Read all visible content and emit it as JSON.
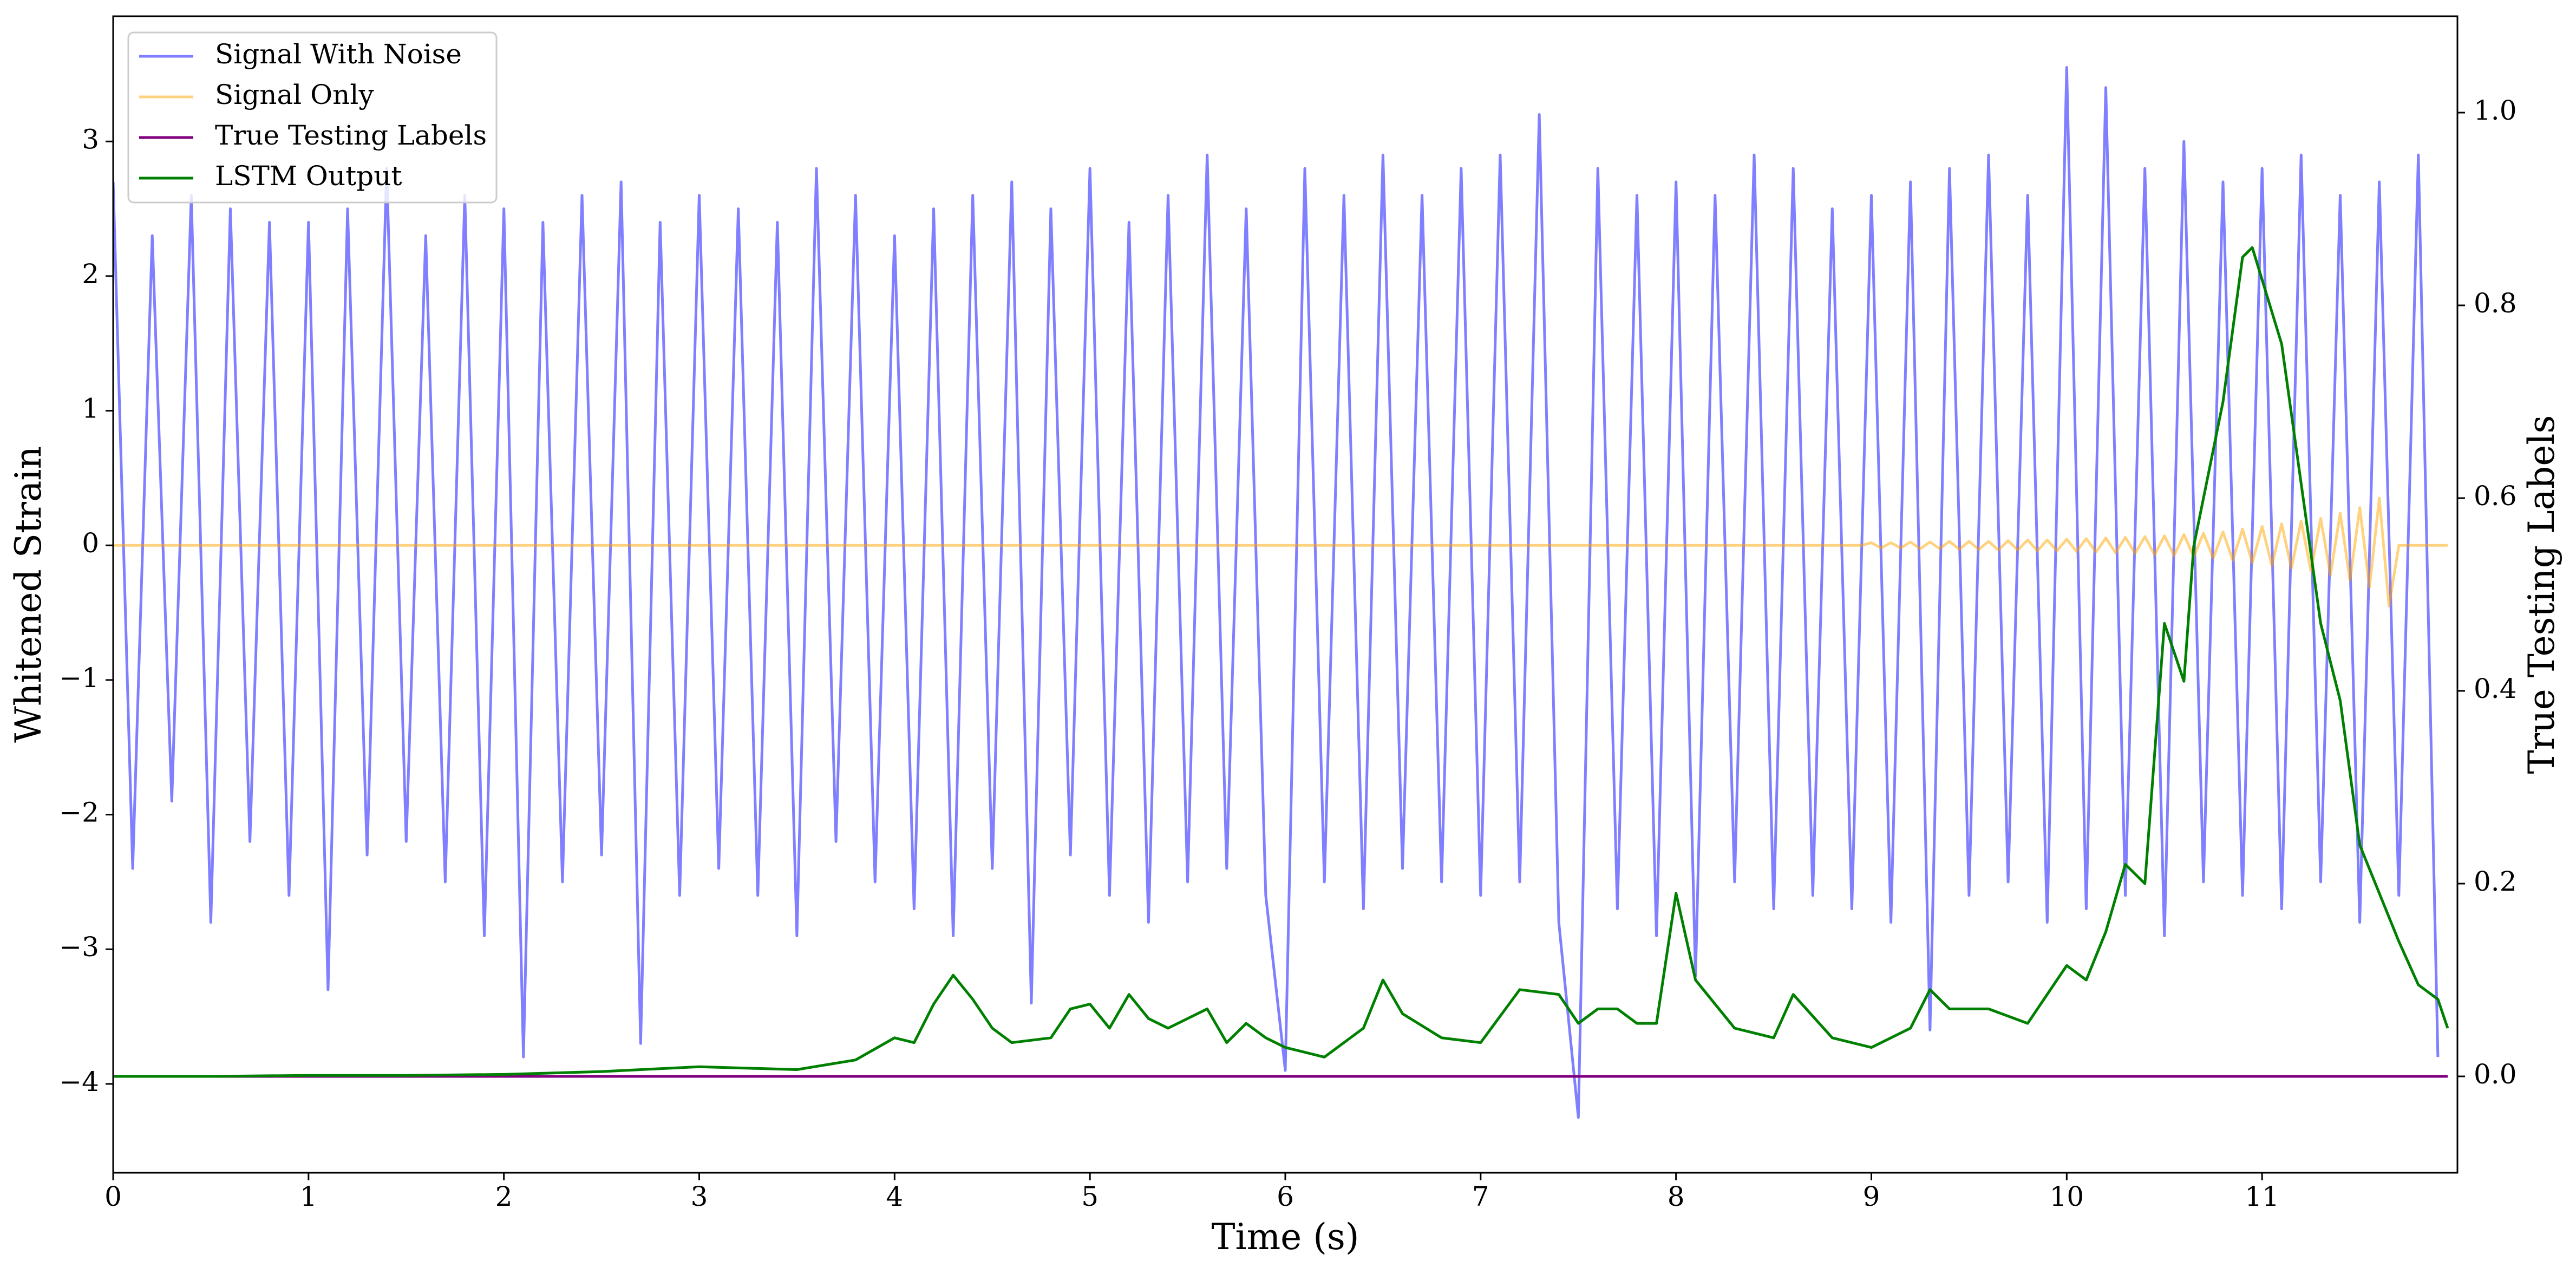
{
  "chart_data": {
    "type": "line",
    "xlabel": "Time (s)",
    "ylabel": "Whitened Strain",
    "y2label": "True Testing Labels",
    "xlim": [
      0,
      12
    ],
    "ylim": [
      -4.66,
      3.93
    ],
    "y2lim": [
      -0.1,
      1.1
    ],
    "xticks": [
      0,
      1,
      2,
      3,
      4,
      5,
      6,
      7,
      8,
      9,
      10,
      11
    ],
    "yticks": [
      {
        "value": -4,
        "label": "−4"
      },
      {
        "value": -3,
        "label": "−3"
      },
      {
        "value": -2,
        "label": "−2"
      },
      {
        "value": -1,
        "label": "−1"
      },
      0,
      1,
      2,
      3
    ],
    "y2ticks": [
      {
        "value": 0,
        "label": "0.0"
      },
      {
        "value": 0.2,
        "label": "0.2"
      },
      {
        "value": 0.4,
        "label": "0.4"
      },
      {
        "value": 0.6,
        "label": "0.6"
      },
      {
        "value": 0.8,
        "label": "0.8"
      },
      {
        "value": 1,
        "label": "1.0"
      }
    ],
    "legend": "upper left",
    "series": [
      {
        "name": "Signal With Noise",
        "color": "blue",
        "alpha": 0.5,
        "x": [
          0,
          0.1,
          0.2,
          0.3,
          0.4,
          0.5,
          0.6,
          0.7,
          0.8,
          0.9,
          1,
          1.1,
          1.2,
          1.3,
          1.4,
          1.5,
          1.6,
          1.7,
          1.8,
          1.9,
          2,
          2.1,
          2.2,
          2.3,
          2.4,
          2.5,
          2.6,
          2.7,
          2.8,
          2.9,
          3,
          3.1,
          3.2,
          3.3,
          3.4,
          3.5,
          3.6,
          3.7,
          3.8,
          3.9,
          4,
          4.1,
          4.2,
          4.3,
          4.4,
          4.5,
          4.6,
          4.7,
          4.8,
          4.9,
          5,
          5.1,
          5.2,
          5.3,
          5.4,
          5.5,
          5.6,
          5.7,
          5.8,
          5.9,
          6,
          6.1,
          6.2,
          6.3,
          6.4,
          6.5,
          6.6,
          6.7,
          6.8,
          6.9,
          7,
          7.1,
          7.2,
          7.3,
          7.4,
          7.5,
          7.6,
          7.7,
          7.8,
          7.9,
          8,
          8.1,
          8.2,
          8.3,
          8.4,
          8.5,
          8.6,
          8.7,
          8.8,
          8.9,
          9,
          9.1,
          9.2,
          9.3,
          9.4,
          9.5,
          9.6,
          9.7,
          9.8,
          9.9,
          10,
          10.1,
          10.2,
          10.3,
          10.4,
          10.5,
          10.6,
          10.7,
          10.8,
          10.9,
          11,
          11.1,
          11.2,
          11.3,
          11.4,
          11.5,
          11.6,
          11.7,
          11.8,
          11.9
        ],
        "values": [
          2.7,
          -2.4,
          2.3,
          -1.9,
          2.6,
          -2.8,
          2.5,
          -2.2,
          2.4,
          -2.6,
          2.4,
          -3.3,
          2.5,
          -2.3,
          2.8,
          -2.2,
          2.3,
          -2.5,
          2.6,
          -2.9,
          2.5,
          -3.8,
          2.4,
          -2.5,
          2.6,
          -2.3,
          2.7,
          -3.7,
          2.4,
          -2.6,
          2.6,
          -2.4,
          2.5,
          -2.6,
          2.4,
          -2.9,
          2.8,
          -2.2,
          2.6,
          -2.5,
          2.3,
          -2.7,
          2.5,
          -2.9,
          2.6,
          -2.4,
          2.7,
          -3.4,
          2.5,
          -2.3,
          2.8,
          -2.6,
          2.4,
          -2.8,
          2.6,
          -2.5,
          2.9,
          -2.4,
          2.5,
          -2.6,
          -3.9,
          2.8,
          -2.5,
          2.6,
          -2.7,
          2.9,
          -2.4,
          2.6,
          -2.5,
          2.8,
          -2.6,
          2.9,
          -2.5,
          3.2,
          -2.8,
          -4.25,
          2.8,
          -2.7,
          2.6,
          -2.9,
          2.7,
          -3.2,
          2.6,
          -2.5,
          2.9,
          -2.7,
          2.8,
          -2.6,
          2.5,
          -2.7,
          2.6,
          -2.8,
          2.7,
          -3.6,
          2.8,
          -2.6,
          2.9,
          -2.5,
          2.6,
          -2.8,
          3.55,
          -2.7,
          3.4,
          -2.6,
          2.8,
          -2.9,
          3.0,
          -2.5,
          2.7,
          -2.6,
          2.8,
          -2.7,
          2.9,
          -2.5,
          2.6,
          -2.8,
          2.7,
          -2.6,
          2.9,
          -3.8
        ]
      },
      {
        "name": "Signal Only",
        "color": "orange",
        "alpha": 0.5,
        "x": [
          0,
          8.95,
          9,
          9.05,
          9.1,
          9.15,
          9.2,
          9.25,
          9.3,
          9.35,
          9.4,
          9.45,
          9.5,
          9.55,
          9.6,
          9.65,
          9.7,
          9.75,
          9.8,
          9.85,
          9.9,
          9.95,
          10,
          10.05,
          10.1,
          10.15,
          10.2,
          10.25,
          10.3,
          10.35,
          10.4,
          10.45,
          10.5,
          10.55,
          10.6,
          10.65,
          10.7,
          10.75,
          10.8,
          10.85,
          10.9,
          10.95,
          11,
          11.05,
          11.1,
          11.15,
          11.2,
          11.25,
          11.3,
          11.35,
          11.4,
          11.45,
          11.5,
          11.55,
          11.6,
          11.65,
          11.7,
          11.95
        ],
        "values": [
          0,
          0,
          0.02,
          -0.02,
          0.02,
          -0.02,
          0.025,
          -0.025,
          0.025,
          -0.025,
          0.03,
          -0.03,
          0.03,
          -0.03,
          0.03,
          -0.035,
          0.035,
          -0.035,
          0.04,
          -0.04,
          0.04,
          -0.04,
          0.045,
          -0.045,
          0.05,
          -0.05,
          0.055,
          -0.055,
          0.06,
          -0.06,
          0.065,
          -0.07,
          0.07,
          -0.075,
          0.08,
          -0.085,
          0.09,
          -0.095,
          0.1,
          -0.11,
          0.12,
          -0.13,
          0.14,
          -0.15,
          0.16,
          -0.17,
          0.18,
          -0.19,
          0.2,
          -0.22,
          0.24,
          -0.26,
          0.28,
          -0.31,
          0.35,
          -0.45,
          0,
          0
        ]
      },
      {
        "name": "True Testing Labels",
        "color": "purple",
        "axis": "y2",
        "x": [
          0,
          11.95
        ],
        "values": [
          0,
          0
        ]
      },
      {
        "name": "LSTM Output",
        "color": "green",
        "axis": "y2",
        "x": [
          0,
          0.5,
          1,
          1.5,
          2,
          2.5,
          3,
          3.5,
          3.8,
          4.0,
          4.1,
          4.2,
          4.3,
          4.4,
          4.5,
          4.6,
          4.8,
          4.9,
          5.0,
          5.1,
          5.2,
          5.3,
          5.4,
          5.6,
          5.7,
          5.8,
          5.9,
          6.0,
          6.2,
          6.4,
          6.5,
          6.6,
          6.8,
          7.0,
          7.2,
          7.4,
          7.5,
          7.6,
          7.7,
          7.8,
          7.9,
          8.0,
          8.1,
          8.3,
          8.5,
          8.6,
          8.8,
          9.0,
          9.2,
          9.3,
          9.4,
          9.6,
          9.8,
          10.0,
          10.1,
          10.2,
          10.3,
          10.4,
          10.5,
          10.6,
          10.65,
          10.8,
          10.9,
          10.95,
          11.1,
          11.3,
          11.4,
          11.5,
          11.7,
          11.8,
          11.9,
          11.95
        ],
        "values": [
          0,
          0,
          0.001,
          0.001,
          0.002,
          0.005,
          0.01,
          0.007,
          0.017,
          0.04,
          0.035,
          0.075,
          0.105,
          0.08,
          0.05,
          0.035,
          0.04,
          0.07,
          0.075,
          0.05,
          0.085,
          0.06,
          0.05,
          0.07,
          0.035,
          0.055,
          0.04,
          0.03,
          0.02,
          0.05,
          0.1,
          0.065,
          0.04,
          0.035,
          0.09,
          0.085,
          0.055,
          0.07,
          0.07,
          0.055,
          0.055,
          0.19,
          0.1,
          0.05,
          0.04,
          0.085,
          0.04,
          0.03,
          0.05,
          0.09,
          0.07,
          0.07,
          0.055,
          0.115,
          0.1,
          0.15,
          0.22,
          0.2,
          0.47,
          0.41,
          0.55,
          0.7,
          0.85,
          0.86,
          0.76,
          0.47,
          0.39,
          0.24,
          0.14,
          0.095,
          0.08,
          0.05
        ]
      }
    ]
  }
}
